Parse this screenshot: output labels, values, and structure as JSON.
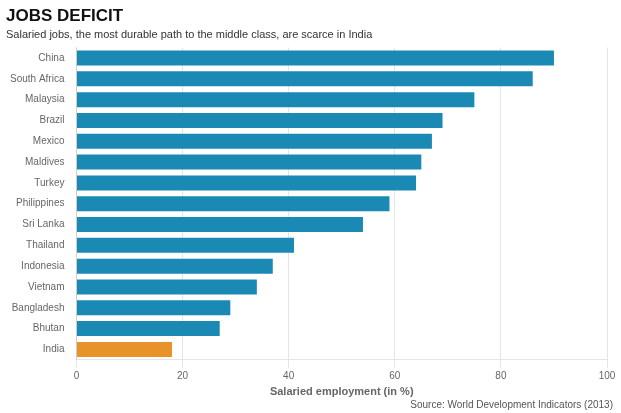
{
  "chart_data": {
    "type": "bar",
    "orientation": "horizontal",
    "title": "JOBS DEFICIT",
    "subtitle": "Salaried jobs, the most durable path to the middle class, are scarce in India",
    "x_label": "Salaried employment (in %)",
    "annotations": [
      "Source: World Development Indicators (2013)"
    ],
    "categories": [
      "China",
      "South Africa",
      "Malaysia",
      "Brazil",
      "Mexico",
      "Maldives",
      "Turkey",
      "Philippines",
      "Sri Lanka",
      "Thailand",
      "Indonesia",
      "Vietnam",
      "Bangladesh",
      "Bhutan",
      "India"
    ],
    "values": [
      90,
      86,
      75,
      69,
      67,
      65,
      64,
      59,
      54,
      41,
      37,
      34,
      29,
      27,
      18
    ],
    "colors": [
      "#1a8ab5",
      "#1a8ab5",
      "#1a8ab5",
      "#1a8ab5",
      "#1a8ab5",
      "#1a8ab5",
      "#1a8ab5",
      "#1a8ab5",
      "#1a8ab5",
      "#1a8ab5",
      "#1a8ab5",
      "#1a8ab5",
      "#1a8ab5",
      "#1a8ab5",
      "#e8922a"
    ],
    "xlim": [
      0,
      100
    ],
    "xticks": [
      0,
      20,
      40,
      60,
      80,
      100
    ],
    "grid": true
  }
}
